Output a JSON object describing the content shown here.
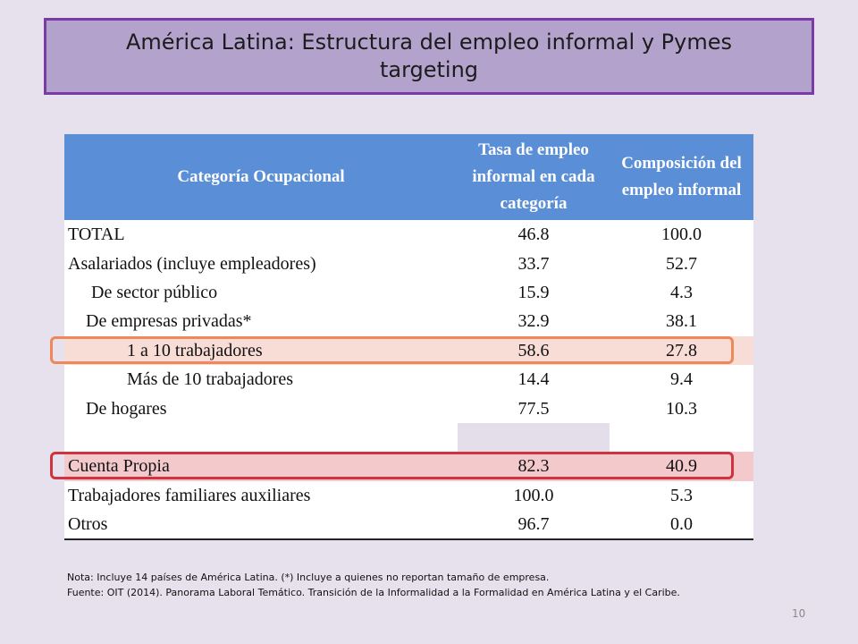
{
  "slide": {
    "title": "América Latina: Estructura del empleo informal y Pymes targeting",
    "page_number": "10"
  },
  "table": {
    "headers": [
      "Categoría Ocupacional",
      "Tasa de empleo informal en cada categoría",
      "Composición del empleo informal"
    ],
    "rows": [
      {
        "label": "TOTAL",
        "rate": "46.8",
        "composition": "100.0"
      },
      {
        "label": "Asalariados (incluye empleadores)",
        "rate": "33.7",
        "composition": "52.7"
      },
      {
        "label": "De sector público",
        "rate": "15.9",
        "composition": "4.3"
      },
      {
        "label": "De empresas privadas*",
        "rate": "32.9",
        "composition": "38.1"
      },
      {
        "label": "1 a 10 trabajadores",
        "rate": "58.6",
        "composition": "27.8"
      },
      {
        "label": "Más de 10 trabajadores",
        "rate": "14.4",
        "composition": "9.4"
      },
      {
        "label": "De hogares",
        "rate": "77.5",
        "composition": "10.3"
      },
      {
        "label": "",
        "rate": "",
        "composition": ""
      },
      {
        "label": "Cuenta Propia",
        "rate": "82.3",
        "composition": "40.9"
      },
      {
        "label": "Trabajadores familiares auxiliares",
        "rate": "100.0",
        "composition": "5.3"
      },
      {
        "label": "Otros",
        "rate": "96.7",
        "composition": "0.0"
      }
    ],
    "highlight_colors": {
      "orange": "#ef8759",
      "red": "#cf3340"
    }
  },
  "footnote": {
    "note": "Nota: Incluye 14 países de América Latina. (*) Incluye a quienes no reportan tamaño de empresa.",
    "source": "Fuente: OIT (2014). Panorama Laboral Temático. Transición de la Informalidad a la Formalidad en América Latina y el Caribe."
  }
}
